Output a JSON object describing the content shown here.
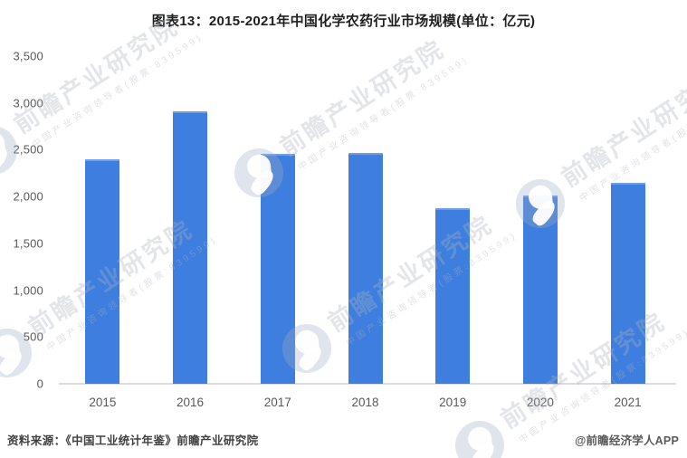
{
  "title": "图表13：2015-2021年中国化学农药行业市场规模(单位：亿元)",
  "footer": {
    "source": "资料来源：《中国工业统计年鉴》前瞻产业研究院",
    "credit": "@前瞻经济学人APP"
  },
  "watermark": {
    "brand": "前瞻产业研究院",
    "tagline": "中国产业咨询领导者(股票:839599)"
  },
  "colors": {
    "bar": "#3e7edf",
    "axis_line": "#dcdcdc",
    "tick_text": "#595959",
    "title_text": "#1f1f1f"
  },
  "chart_data": {
    "type": "bar",
    "title": "图表13：2015-2021年中国化学农药行业市场规模(单位：亿元)",
    "unit": "亿元",
    "categories": [
      "2015",
      "2016",
      "2017",
      "2018",
      "2019",
      "2020",
      "2021"
    ],
    "values": [
      2400,
      2910,
      2455,
      2465,
      1880,
      2010,
      2150
    ],
    "xlabel": "",
    "ylabel": "",
    "ylim": [
      0,
      3500
    ],
    "ytick_interval": 500,
    "ytick_labels": [
      "0",
      "500",
      "1,000",
      "1,500",
      "2,000",
      "2,500",
      "3,000",
      "3,500"
    ],
    "grid": false,
    "legend": "none",
    "bar_color": "#3e7edf"
  }
}
